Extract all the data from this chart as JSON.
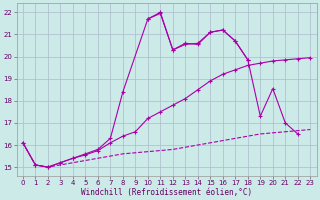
{
  "background_color": "#cceae7",
  "grid_color": "#aabbcc",
  "line_color": "#aa00aa",
  "xlabel": "Windchill (Refroidissement éolien,°C)",
  "ylim": [
    14.6,
    22.4
  ],
  "xlim": [
    -0.5,
    23.5
  ],
  "yticks": [
    15,
    16,
    17,
    18,
    19,
    20,
    21,
    22
  ],
  "xticks": [
    0,
    1,
    2,
    3,
    4,
    5,
    6,
    7,
    8,
    9,
    10,
    11,
    12,
    13,
    14,
    15,
    16,
    17,
    18,
    19,
    20,
    21,
    22,
    23
  ],
  "line1_x": [
    0,
    1,
    2,
    3,
    4,
    5,
    6,
    7,
    8,
    9,
    10,
    11,
    12,
    13,
    14,
    15,
    16,
    17,
    18,
    19,
    20,
    21,
    22,
    23
  ],
  "line1_y": [
    16.1,
    15.1,
    15.0,
    15.1,
    15.2,
    15.3,
    15.4,
    15.5,
    15.6,
    15.65,
    15.7,
    15.75,
    15.8,
    15.9,
    16.0,
    16.1,
    16.2,
    16.3,
    16.4,
    16.5,
    16.55,
    16.6,
    16.65,
    16.7
  ],
  "line2_x": [
    0,
    1,
    2,
    3,
    4,
    5,
    6,
    7,
    8,
    9,
    10,
    11,
    12,
    13,
    14,
    15,
    16,
    17,
    18,
    19,
    20,
    21,
    22,
    23
  ],
  "line2_y": [
    16.1,
    15.1,
    15.0,
    15.2,
    15.4,
    15.55,
    15.75,
    16.1,
    16.4,
    16.6,
    17.2,
    17.5,
    17.8,
    18.1,
    18.5,
    18.9,
    19.2,
    19.4,
    19.6,
    19.7,
    19.8,
    19.85,
    19.9,
    19.95
  ],
  "line3_x": [
    0,
    1,
    2,
    3,
    4,
    5,
    6,
    7,
    8,
    10,
    11,
    12,
    13,
    14,
    15,
    16,
    17,
    18,
    19,
    20,
    21,
    22
  ],
  "line3_y": [
    16.1,
    15.1,
    15.0,
    15.2,
    15.4,
    15.6,
    15.8,
    16.3,
    18.4,
    21.7,
    22.0,
    20.3,
    20.6,
    20.55,
    21.1,
    21.2,
    20.7,
    19.85,
    null,
    null,
    null,
    null
  ],
  "line3_x2": [
    0,
    1,
    2,
    3,
    4,
    5,
    6,
    7,
    8,
    10,
    11,
    12,
    13,
    14,
    15,
    16,
    17,
    18
  ],
  "line3_y2": [
    16.1,
    15.1,
    15.0,
    15.2,
    15.4,
    15.6,
    15.8,
    16.3,
    18.4,
    21.7,
    22.0,
    20.3,
    20.6,
    20.55,
    21.1,
    21.2,
    20.7,
    19.85
  ],
  "line4_x": [
    10,
    11,
    12,
    13,
    14,
    15,
    16,
    17,
    18,
    19,
    20,
    21,
    22
  ],
  "line4_y": [
    21.7,
    21.95,
    20.3,
    20.55,
    20.6,
    21.1,
    21.2,
    20.7,
    19.85,
    17.3,
    18.55,
    17.0,
    16.5
  ]
}
